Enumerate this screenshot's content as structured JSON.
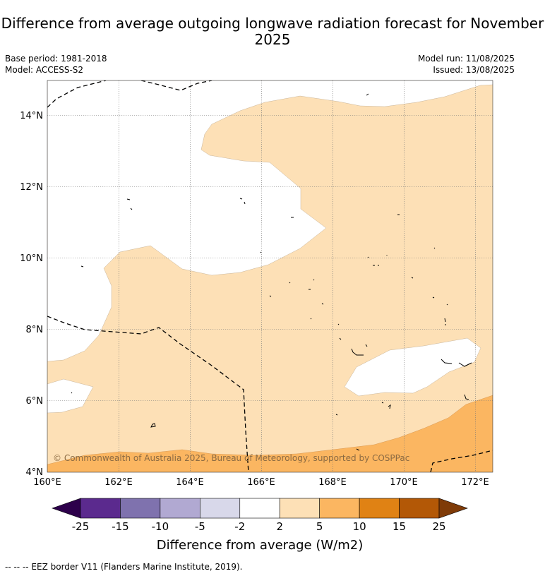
{
  "title": "Difference from average outgoing longwave radiation forecast for November 2025",
  "info": {
    "base_period": "Base period: 1981-2018",
    "model": "Model: ACCESS-S2",
    "model_run": "Model run: 11/08/2025",
    "issued": "Issued: 13/08/2025"
  },
  "map": {
    "lon_range": [
      160,
      172.5
    ],
    "lat_range": [
      4,
      15.1
    ],
    "lon_ticks": [
      "160°E",
      "162°E",
      "164°E",
      "166°E",
      "168°E",
      "170°E",
      "172°E"
    ],
    "lat_ticks": [
      "4°N",
      "6°N",
      "8°N",
      "10°N",
      "12°N",
      "14°N"
    ],
    "copyright": "© Commonwealth of Australia 2025, Bureau of Meteorology, supported by COSPPac",
    "fill_colors": {
      "band_2_5": "#fde0b6",
      "band_5_10": "#fbb661",
      "no_change": "#ffffff"
    }
  },
  "colorbar": {
    "levels": [
      "-25",
      "-15",
      "-10",
      "-5",
      "-2",
      "2",
      "5",
      "10",
      "15",
      "25"
    ],
    "colors": [
      "#5b2a8e",
      "#7f72ae",
      "#b1a9d2",
      "#d8d8ea",
      "#ffffff",
      "#fde0b6",
      "#fbb661",
      "#e08214",
      "#b35806"
    ],
    "extend_low_color": "#2d004b",
    "extend_high_color": "#7f3b08",
    "label": "Difference from average (W/m2)"
  },
  "footnote": "--  --  -- EEZ border V11 (Flanders Marine Institute, 2019)."
}
